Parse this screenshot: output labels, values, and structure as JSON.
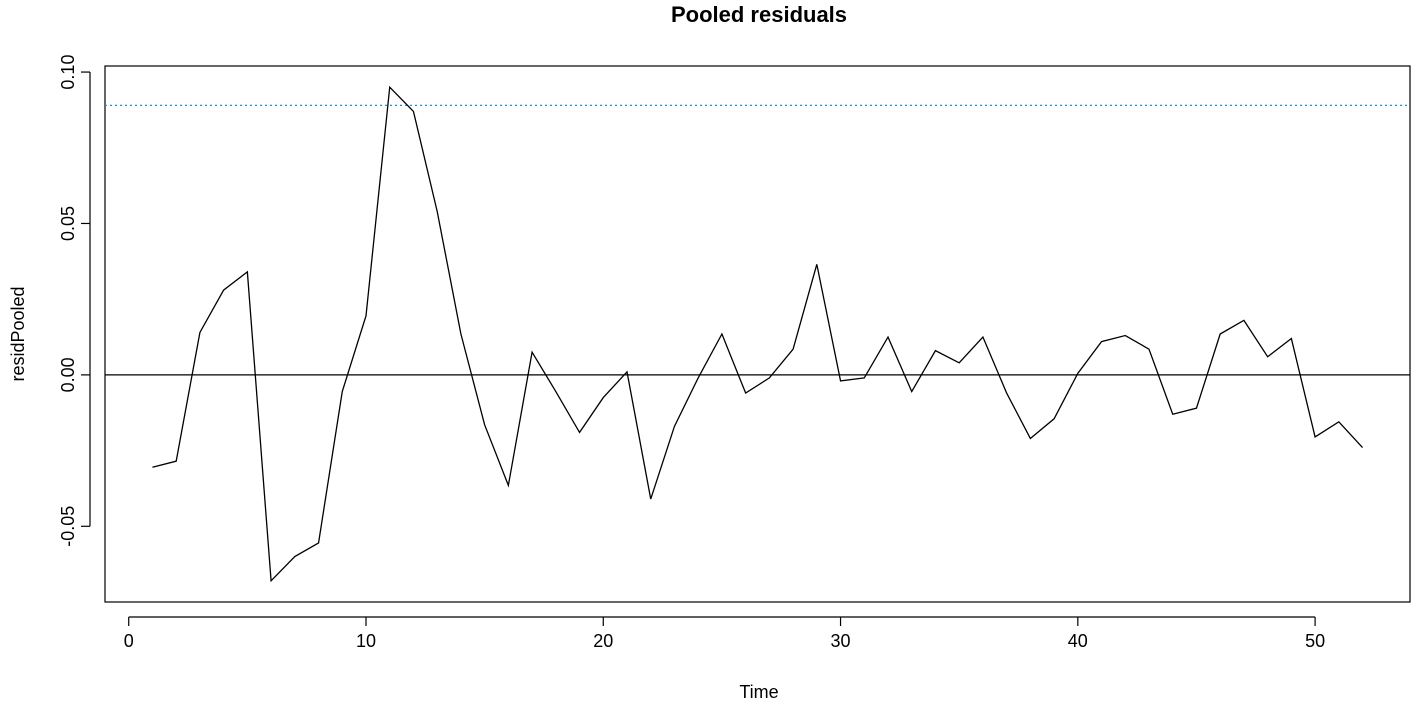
{
  "chart_data": {
    "type": "line",
    "title": "Pooled residuals",
    "xlabel": "Time",
    "ylabel": "residPooled",
    "xlim": [
      -1,
      54
    ],
    "ylim": [
      -0.075,
      0.102
    ],
    "x_ticks": [
      0,
      10,
      20,
      30,
      40,
      50
    ],
    "x_tick_labels": [
      "0",
      "10",
      "20",
      "30",
      "40",
      "50"
    ],
    "y_ticks": [
      -0.05,
      0.0,
      0.05,
      0.1
    ],
    "y_tick_labels": [
      "-0.05",
      "0.00",
      "0.05",
      "0.10"
    ],
    "grid": false,
    "legend": "none",
    "series": [
      {
        "color": "#000000",
        "x": [
          1,
          2,
          3,
          4,
          5,
          6,
          7,
          8,
          9,
          10,
          11,
          12,
          13,
          14,
          15,
          16,
          17,
          18,
          19,
          20,
          21,
          22,
          23,
          24,
          25,
          26,
          27,
          28,
          29,
          30,
          31,
          32,
          33,
          34,
          35,
          36,
          37,
          38,
          39,
          40,
          41,
          42,
          43,
          44,
          45,
          46,
          47,
          48,
          49,
          50,
          51,
          52
        ],
        "values": [
          -0.0305,
          -0.0285,
          0.014,
          0.028,
          0.034,
          -0.068,
          -0.06,
          -0.0555,
          -0.0055,
          0.0195,
          0.095,
          0.087,
          0.054,
          0.0135,
          -0.0165,
          -0.0365,
          0.0075,
          -0.0055,
          -0.019,
          -0.0075,
          0.001,
          -0.041,
          -0.017,
          -0.001,
          0.0135,
          -0.006,
          -0.001,
          0.0085,
          0.0365,
          -0.002,
          -0.001,
          0.0125,
          -0.0055,
          0.008,
          0.004,
          0.0125,
          -0.006,
          -0.021,
          -0.0145,
          0.0005,
          0.011,
          0.013,
          0.0085,
          -0.013,
          -0.011,
          0.0135,
          0.018,
          0.006,
          0.012,
          -0.0205,
          -0.0155,
          -0.024
        ]
      }
    ],
    "reference_lines": [
      {
        "y": 0.0,
        "color": "#000000",
        "style": "solid"
      },
      {
        "y": 0.089,
        "color": "#1f8fd6",
        "style": "dotted"
      }
    ]
  }
}
